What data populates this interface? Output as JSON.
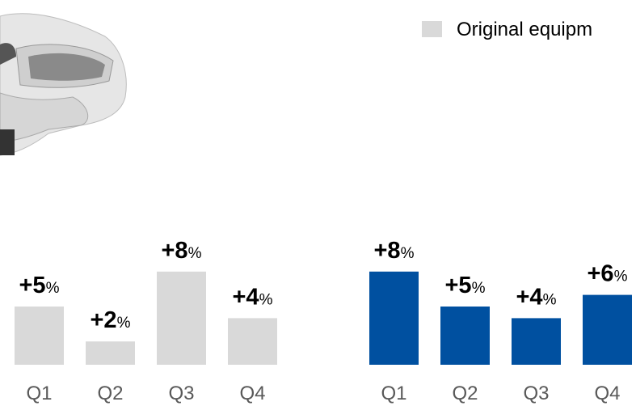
{
  "chart_data": [
    {
      "type": "bar",
      "categories": [
        "Q1",
        "Q2",
        "Q3",
        "Q4"
      ],
      "series": [
        {
          "name": "Original equipm",
          "color": "#d9d9d9",
          "values": [
            5,
            2,
            8,
            4
          ],
          "value_labels": [
            "+5%",
            "+2%",
            "+8%",
            "+4%"
          ]
        }
      ]
    },
    {
      "type": "bar",
      "categories": [
        "Q1",
        "Q2",
        "Q3",
        "Q4"
      ],
      "series": [
        {
          "color": "#0050a0",
          "values": [
            8,
            5,
            4,
            6
          ],
          "value_labels": [
            "+8%",
            "+5%",
            "+4%",
            "+6%"
          ]
        }
      ]
    }
  ]
}
